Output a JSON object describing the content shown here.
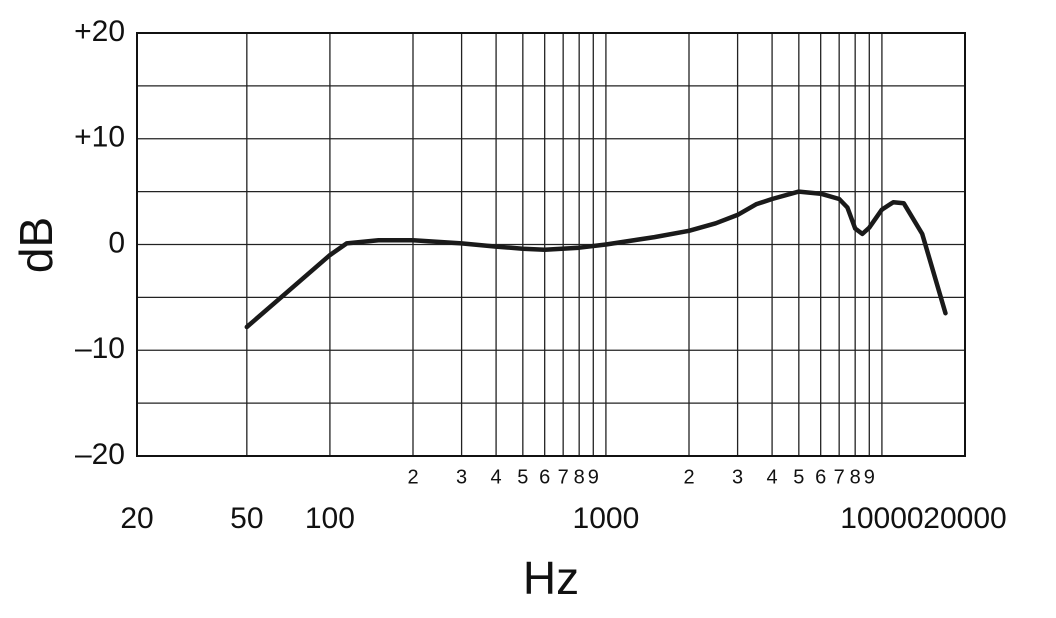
{
  "chart_data": {
    "type": "line",
    "x_label": "Hz",
    "y_label": "dB",
    "x": [
      50,
      70,
      100,
      115,
      150,
      200,
      300,
      400,
      500,
      600,
      800,
      1000,
      1500,
      2000,
      2500,
      3000,
      3500,
      4000,
      5000,
      6000,
      7000,
      7500,
      8000,
      8500,
      9000,
      10000,
      11000,
      12000,
      14000,
      17000
    ],
    "values": [
      -7.8,
      -4.5,
      -1,
      0.1,
      0.4,
      0.4,
      0.1,
      -0.2,
      -0.4,
      -0.5,
      -0.3,
      0,
      0.7,
      1.3,
      2,
      2.8,
      3.8,
      4.3,
      5,
      4.8,
      4.3,
      3.5,
      1.5,
      1,
      1.6,
      3.3,
      4,
      3.9,
      1,
      -6.5
    ],
    "color": "#1a1a1a",
    "x_log": true,
    "xlim": [
      20,
      20000
    ],
    "xticks": [
      20,
      50,
      100,
      1000,
      10000,
      20000
    ],
    "xticks_minor": [
      {
        "value": 200,
        "label": "2"
      },
      {
        "value": 300,
        "label": "3"
      },
      {
        "value": 400,
        "label": "4"
      },
      {
        "value": 500,
        "label": "5"
      },
      {
        "value": 600,
        "label": "6"
      },
      {
        "value": 700,
        "label": "7"
      },
      {
        "value": 800,
        "label": "8"
      },
      {
        "value": 900,
        "label": "9"
      },
      {
        "value": 2000,
        "label": "2"
      },
      {
        "value": 3000,
        "label": "3"
      },
      {
        "value": 4000,
        "label": "4"
      },
      {
        "value": 5000,
        "label": "5"
      },
      {
        "value": 6000,
        "label": "6"
      },
      {
        "value": 7000,
        "label": "7"
      },
      {
        "value": 8000,
        "label": "8"
      },
      {
        "value": 9000,
        "label": "9"
      }
    ],
    "ylim": [
      -20,
      20
    ],
    "yticks": [
      {
        "value": 20,
        "label": "+20"
      },
      {
        "value": 10,
        "label": "+10"
      },
      0,
      {
        "value": -10,
        "label": "–10"
      },
      {
        "value": -20,
        "label": "–20"
      }
    ],
    "yticks_minor": [
      15,
      5,
      -5,
      -15
    ],
    "grid": true
  }
}
